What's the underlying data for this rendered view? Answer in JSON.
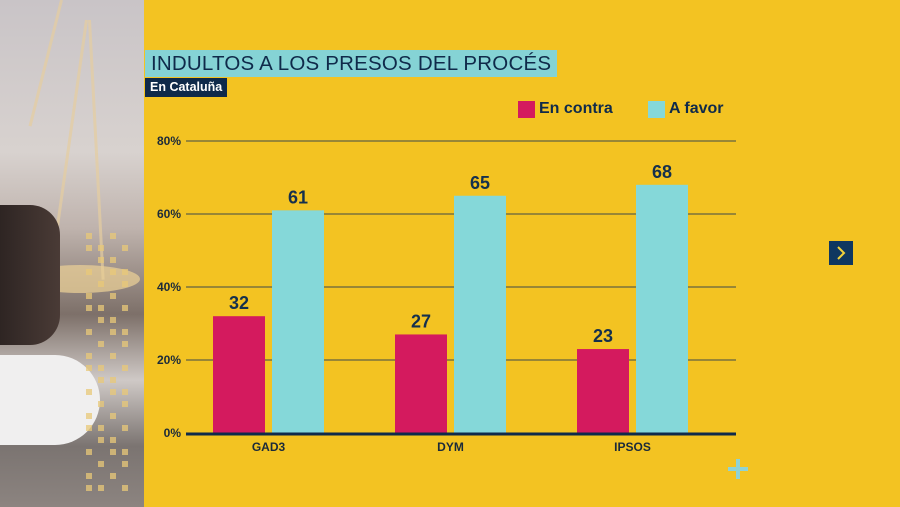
{
  "title": "INDULTOS A LOS PRESOS DEL PROCÉS",
  "subtitle": "En Cataluña",
  "legend": [
    {
      "label": "En contra",
      "color": "#d41a5e"
    },
    {
      "label": "A favor",
      "color": "#85d8d9"
    }
  ],
  "colors": {
    "background": "#f3c322",
    "title_bg": "#85d3d5",
    "navy": "#0f2a4a",
    "contra": "#d41a5e",
    "favor": "#85d8d9"
  },
  "icons": {
    "next": "chevron-right-icon",
    "plus": "plus-icon"
  },
  "chart_data": {
    "type": "bar",
    "title": "INDULTOS A LOS PRESOS DEL PROCÉS",
    "subtitle": "En Cataluña",
    "categories": [
      "GAD3",
      "DYM",
      "IPSOS"
    ],
    "series": [
      {
        "name": "En contra",
        "values": [
          32,
          27,
          23
        ]
      },
      {
        "name": "A favor",
        "values": [
          61,
          65,
          68
        ]
      }
    ],
    "xlabel": "",
    "ylabel": "",
    "ylim": [
      0,
      80
    ],
    "yticks": [
      0,
      20,
      40,
      60,
      80
    ],
    "ytick_labels": [
      "0%",
      "20%",
      "40%",
      "60%",
      "80%"
    ],
    "grid": true,
    "legend_position": "top-right",
    "data_labels": true
  }
}
